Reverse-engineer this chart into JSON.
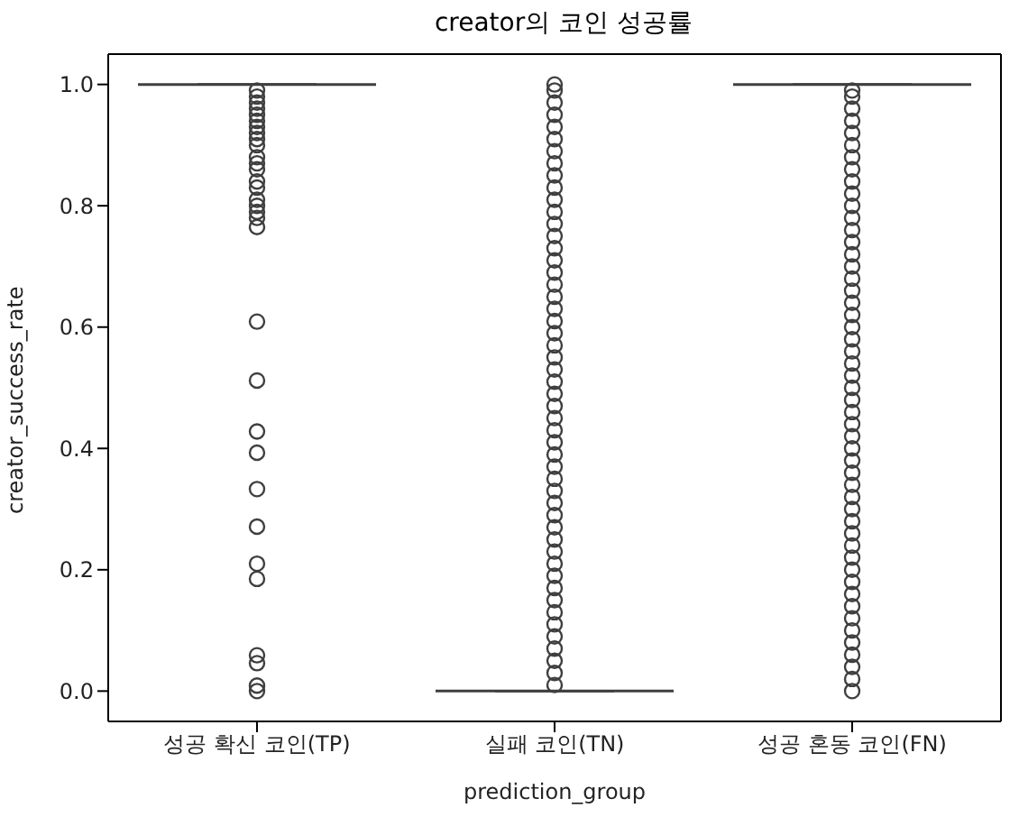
{
  "chart_data": {
    "type": "box",
    "title": "creator의 코인 성공률",
    "xlabel": "prediction_group",
    "ylabel": "creator_success_rate",
    "color": "#3f3f3f",
    "categories": [
      "성공 확신 코인(TP)",
      "실패 코인(TN)",
      "성공 혼동 코인(FN)"
    ],
    "boxes": [
      {
        "low": 1,
        "q1": 1,
        "median": 1,
        "q3": 1,
        "high": 1,
        "outliers": [
          0.0,
          0.009,
          0.046,
          0.059,
          0.185,
          0.21,
          0.271,
          0.333,
          0.393,
          0.428,
          0.512,
          0.609,
          0.765,
          0.78,
          0.79,
          0.8,
          0.81,
          0.83,
          0.84,
          0.86,
          0.87,
          0.88,
          0.9,
          0.91,
          0.92,
          0.93,
          0.94,
          0.95,
          0.96,
          0.97,
          0.98,
          0.99
        ]
      },
      {
        "low": 0,
        "q1": 0,
        "median": 0,
        "q3": 0,
        "high": 0,
        "outliers": [
          0.01,
          0.03,
          0.05,
          0.07,
          0.09,
          0.11,
          0.13,
          0.15,
          0.17,
          0.19,
          0.21,
          0.23,
          0.25,
          0.27,
          0.29,
          0.31,
          0.33,
          0.35,
          0.37,
          0.39,
          0.41,
          0.43,
          0.45,
          0.47,
          0.49,
          0.51,
          0.53,
          0.55,
          0.57,
          0.59,
          0.61,
          0.63,
          0.65,
          0.67,
          0.69,
          0.71,
          0.73,
          0.75,
          0.77,
          0.79,
          0.81,
          0.83,
          0.85,
          0.87,
          0.89,
          0.91,
          0.93,
          0.95,
          0.97,
          0.99,
          1.0
        ]
      },
      {
        "low": 1,
        "q1": 1,
        "median": 1,
        "q3": 1,
        "high": 1,
        "outliers": [
          0.0,
          0.02,
          0.04,
          0.06,
          0.08,
          0.1,
          0.12,
          0.14,
          0.16,
          0.18,
          0.2,
          0.22,
          0.24,
          0.26,
          0.28,
          0.3,
          0.32,
          0.34,
          0.36,
          0.38,
          0.4,
          0.42,
          0.44,
          0.46,
          0.48,
          0.5,
          0.52,
          0.54,
          0.56,
          0.58,
          0.6,
          0.62,
          0.64,
          0.66,
          0.68,
          0.7,
          0.72,
          0.74,
          0.76,
          0.78,
          0.8,
          0.82,
          0.84,
          0.86,
          0.88,
          0.9,
          0.92,
          0.94,
          0.96,
          0.98,
          0.99
        ]
      }
    ],
    "ylim": [
      -0.05,
      1.05
    ],
    "yticks": [
      {
        "value": 0,
        "label": "0.0"
      },
      {
        "value": 0.2,
        "label": "0.2"
      },
      {
        "value": 0.4,
        "label": "0.4"
      },
      {
        "value": 0.6,
        "label": "0.6"
      },
      {
        "value": 0.8,
        "label": "0.8"
      },
      {
        "value": 1,
        "label": "1.0"
      }
    ]
  }
}
